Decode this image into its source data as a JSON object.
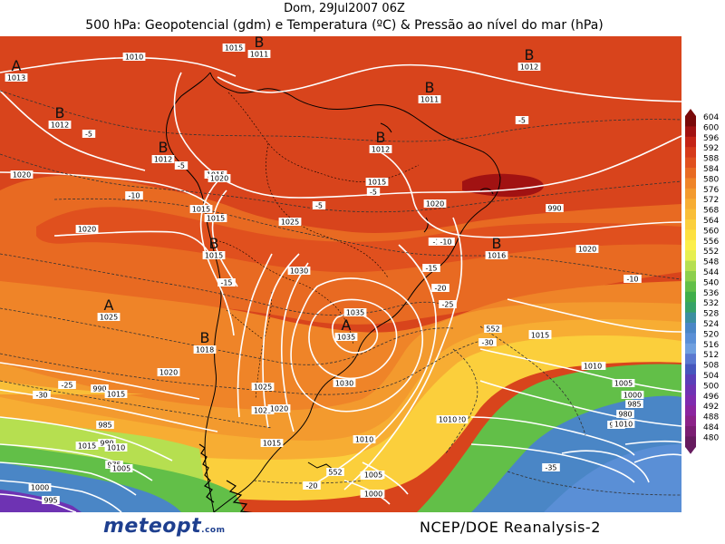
{
  "header": {
    "date_line": "Dom, 29Jul2007 06Z",
    "title": "500 hPa: Geopotencial (gdm) e Temperatura (ºC) & Pressão ao nível do mar (hPa)"
  },
  "footer": {
    "logo_text": "meteopt",
    "logo_suffix": ".com",
    "credit": "NCEP/DOE Reanalysis-2"
  },
  "colorbar": {
    "labels": [
      "604",
      "600",
      "596",
      "592",
      "588",
      "584",
      "580",
      "576",
      "572",
      "568",
      "564",
      "560",
      "556",
      "552",
      "548",
      "544",
      "540",
      "536",
      "532",
      "528",
      "524",
      "520",
      "516",
      "512",
      "508",
      "504",
      "500",
      "496",
      "492",
      "488",
      "484",
      "480"
    ],
    "colors": [
      "#7a0a0a",
      "#a11212",
      "#c42416",
      "#d63a1a",
      "#e0501e",
      "#e86a22",
      "#ef8428",
      "#f39a2e",
      "#f7ad33",
      "#f9be38",
      "#fbcf3c",
      "#fde040",
      "#fcef4a",
      "#e6ef50",
      "#b6df50",
      "#8ccf4c",
      "#62bf48",
      "#3fae4a",
      "#36a268",
      "#3c8fa0",
      "#4a86c6",
      "#5a8fd6",
      "#6f9fdf",
      "#5a78d0",
      "#4656bd",
      "#5a3fb8",
      "#6e33b3",
      "#7f2bae",
      "#8b259f",
      "#8b2288",
      "#7a1d72",
      "#661a5e"
    ]
  },
  "pressure_centers": [
    {
      "letter": "A",
      "value": "1013"
    },
    {
      "letter": "B",
      "value": "1012"
    },
    {
      "letter": "B",
      "value": "1012"
    },
    {
      "letter": "B",
      "value": "1011"
    },
    {
      "letter": "B",
      "value": "1012"
    },
    {
      "letter": "B",
      "value": "1011"
    },
    {
      "letter": "B",
      "value": "1012"
    },
    {
      "letter": "B",
      "value": "1015"
    },
    {
      "letter": "B",
      "value": "1016"
    },
    {
      "letter": "A",
      "value": "1025"
    },
    {
      "letter": "B",
      "value": "1018"
    },
    {
      "letter": "A",
      "value": "1035"
    }
  ],
  "isobar_labels": [
    "1010",
    "1015",
    "1015",
    "1020",
    "1015",
    "1015",
    "1020",
    "1020",
    "1020",
    "1025",
    "1030",
    "1035",
    "1015",
    "1015",
    "1020",
    "1020",
    "1025",
    "1030",
    "1025",
    "1020",
    "1015",
    "1010",
    "1010",
    "1005",
    "1000",
    "995",
    "990",
    "985",
    "980",
    "975",
    "1015",
    "1010",
    "1005",
    "1000",
    "995",
    "990",
    "985",
    "980",
    "1010",
    "1005",
    "1000",
    "1020",
    "1015",
    "1010",
    "1010",
    "1005",
    "1000",
    "1015"
  ],
  "temperature_labels": [
    "-5",
    "-5",
    "-5",
    "-5",
    "-5",
    "-5",
    "-10",
    "-10",
    "-10",
    "-10",
    "-15",
    "-15",
    "-20",
    "-25",
    "-25",
    "-30",
    "-30",
    "-35",
    "-20"
  ],
  "height_labels": [
    "552",
    "552"
  ]
}
